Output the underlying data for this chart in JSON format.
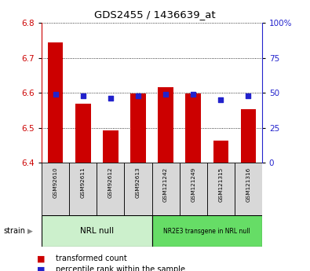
{
  "title": "GDS2455 / 1436639_at",
  "samples": [
    "GSM92610",
    "GSM92611",
    "GSM92612",
    "GSM92613",
    "GSM121242",
    "GSM121249",
    "GSM121315",
    "GSM121316"
  ],
  "transformed_counts": [
    6.745,
    6.568,
    6.493,
    6.597,
    6.617,
    6.597,
    6.464,
    6.553
  ],
  "percentile_ranks": [
    49,
    48,
    46,
    48,
    49,
    49,
    45,
    48
  ],
  "ylim_left": [
    6.4,
    6.8
  ],
  "ylim_right": [
    0,
    100
  ],
  "yticks_left": [
    6.4,
    6.5,
    6.6,
    6.7,
    6.8
  ],
  "yticks_right": [
    0,
    25,
    50,
    75,
    100
  ],
  "yticklabels_right": [
    "0",
    "25",
    "50",
    "75",
    "100%"
  ],
  "bar_color": "#cc0000",
  "dot_color": "#2222cc",
  "group1_label": "NRL null",
  "group2_label": "NR2E3 transgene in NRL null",
  "group1_color": "#ccf0cc",
  "group2_color": "#66dd66",
  "strain_label": "strain",
  "legend_bar_label": "transformed count",
  "legend_dot_label": "percentile rank within the sample",
  "bar_base": 6.4,
  "tick_label_color_left": "#cc0000",
  "tick_label_color_right": "#2222cc",
  "grid_color": "black",
  "sample_bg_color": "#d8d8d8",
  "white": "#ffffff"
}
